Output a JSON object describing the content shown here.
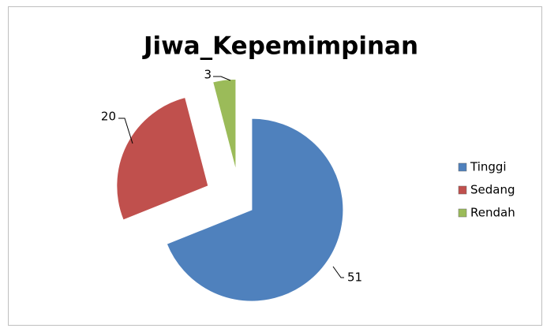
{
  "chart_data": {
    "type": "pie",
    "title": "Jiwa_Kepemimpinan",
    "categories": [
      "Tinggi",
      "Sedang",
      "Rendah"
    ],
    "values": [
      51,
      20,
      3
    ],
    "colors": [
      "#4f81bd",
      "#c0504d",
      "#9bbb59"
    ],
    "legend": "right"
  }
}
